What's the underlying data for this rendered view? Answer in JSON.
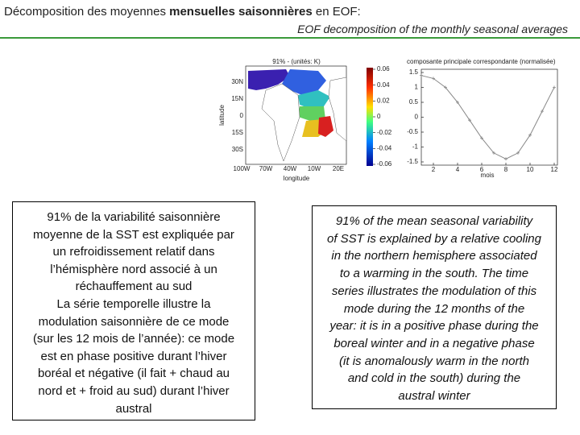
{
  "header": {
    "title_fr": [
      "Décomposition des moyennes ",
      "mensuelles saisonnières",
      " en EOF:"
    ],
    "title_en": "EOF decomposition of the monthly seasonal averages"
  },
  "map": {
    "title": "91% - (unités: K)",
    "ylabel": "latitude",
    "xlabel": "longitude",
    "lat_labels": [
      "30N",
      "15N",
      "0",
      "15S",
      "30S"
    ],
    "lon_labels": [
      "100W",
      "70W",
      "40W",
      "10W",
      "20E"
    ],
    "colorbar": {
      "lim": [
        -0.06,
        0.06
      ],
      "ticks": [
        0.06,
        0.04,
        0.02,
        0,
        -0.02,
        -0.04,
        -0.06
      ]
    }
  },
  "chart_data": {
    "type": "line",
    "title": "composante principale correspondante (normalisée)",
    "xlabel": "mois",
    "x": [
      1,
      2,
      3,
      4,
      5,
      6,
      7,
      8,
      9,
      10,
      11,
      12
    ],
    "series": [
      {
        "color": "#888888",
        "values": [
          1.4,
          1.3,
          1.0,
          0.5,
          -0.1,
          -0.7,
          -1.2,
          -1.4,
          -1.2,
          -0.6,
          0.2,
          1.0
        ]
      }
    ],
    "xlim": [
      1,
      12
    ],
    "ylim": [
      -1.5,
      1.5
    ],
    "xticks": [
      2,
      4,
      6,
      8,
      10,
      12
    ],
    "yticks": [
      1.5,
      1,
      0.5,
      0,
      -0.5,
      -1,
      -1.5
    ]
  },
  "text_fr": {
    "lines": [
      "91% de la variabilité saisonnière",
      "moyenne de la SST est expliquée par",
      "un refroidissement relatif dans",
      "l’hémisphère nord associé à un",
      "réchauffement au sud",
      "La série temporelle illustre la",
      "modulation saisonnière de ce mode",
      "(sur les 12 mois de l’année): ce mode",
      "est en phase positive durant l’hiver",
      "boréal et négative (il fait + chaud au",
      "nord et + froid au sud) durant l’hiver",
      "austral"
    ]
  },
  "text_en": {
    "lines": [
      "91% of the mean seasonal variability",
      "of SST is explained by a relative cooling",
      "in the northern hemisphere associated",
      "to a warming in the south. The time",
      "series illustrates the modulation of this",
      "mode during the 12 months of the",
      "year: it is in a positive phase during the",
      "boreal winter and in a negative phase",
      "(it is anomalously warm in the north",
      "and cold in the south) during the",
      "austral winter"
    ]
  }
}
